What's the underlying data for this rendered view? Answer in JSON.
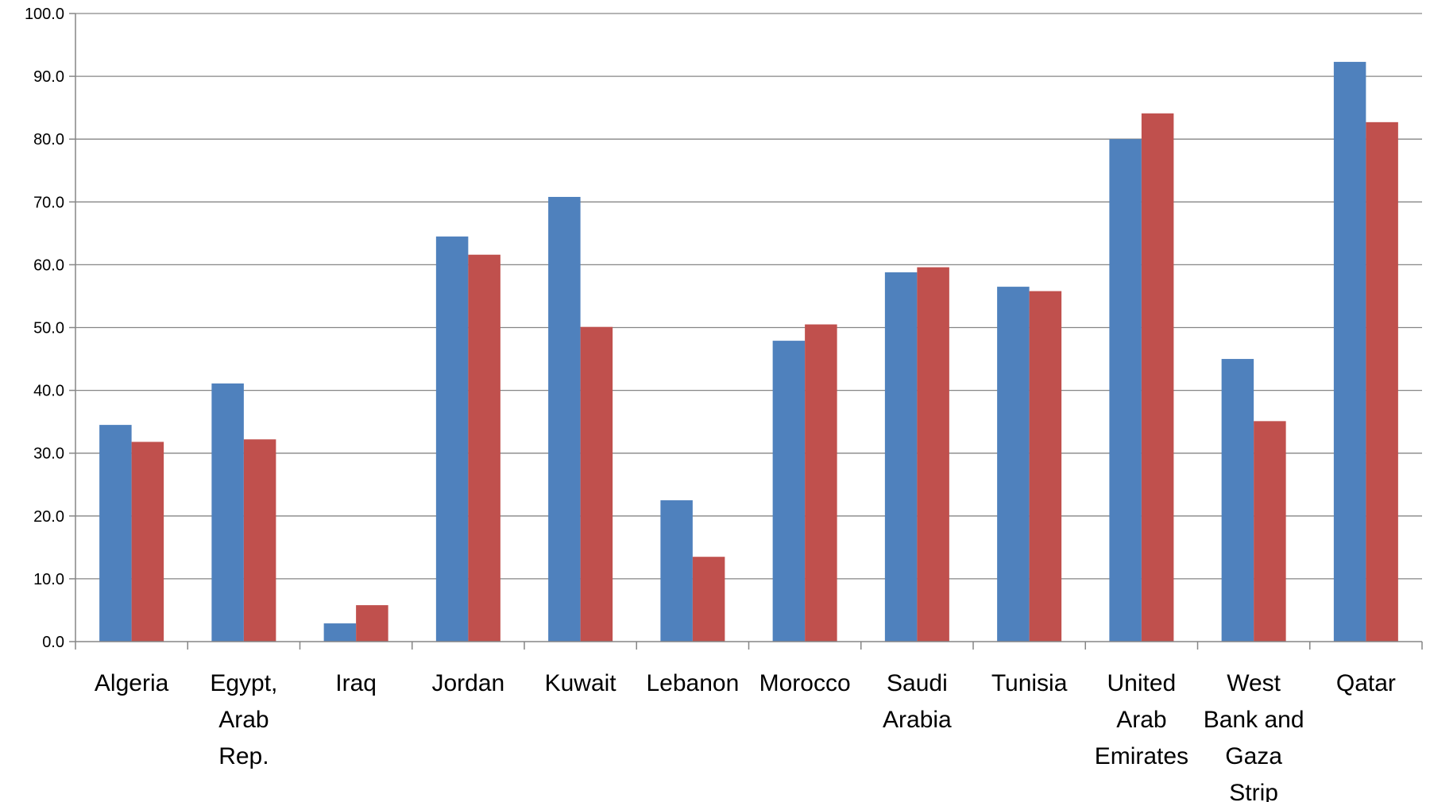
{
  "chart_data": {
    "type": "bar",
    "title": "",
    "xlabel": "",
    "ylabel": "",
    "ylim": [
      0,
      100
    ],
    "yticks": [
      "0.0",
      "10.0",
      "20.0",
      "30.0",
      "40.0",
      "50.0",
      "60.0",
      "70.0",
      "80.0",
      "90.0",
      "100.0"
    ],
    "grid": true,
    "legend": "none",
    "categories": [
      [
        "Algeria"
      ],
      [
        "Egypt,",
        "Arab",
        "Rep."
      ],
      [
        "Iraq"
      ],
      [
        "Jordan"
      ],
      [
        "Kuwait"
      ],
      [
        "Lebanon"
      ],
      [
        "Morocco"
      ],
      [
        "Saudi",
        "Arabia"
      ],
      [
        "Tunisia"
      ],
      [
        "United",
        "Arab",
        "Emirates"
      ],
      [
        "West",
        "Bank and",
        "Gaza",
        "Strip"
      ],
      [
        "Qatar"
      ]
    ],
    "series": [
      {
        "color": "#4F81BD",
        "values": [
          34.5,
          41.1,
          2.9,
          64.5,
          70.8,
          22.5,
          47.9,
          58.8,
          56.5,
          80.0,
          45.0,
          92.3
        ]
      },
      {
        "color": "#C0504D",
        "values": [
          31.8,
          32.2,
          5.8,
          61.6,
          50.1,
          13.5,
          50.5,
          59.6,
          55.8,
          84.1,
          35.1,
          82.7
        ]
      }
    ]
  }
}
